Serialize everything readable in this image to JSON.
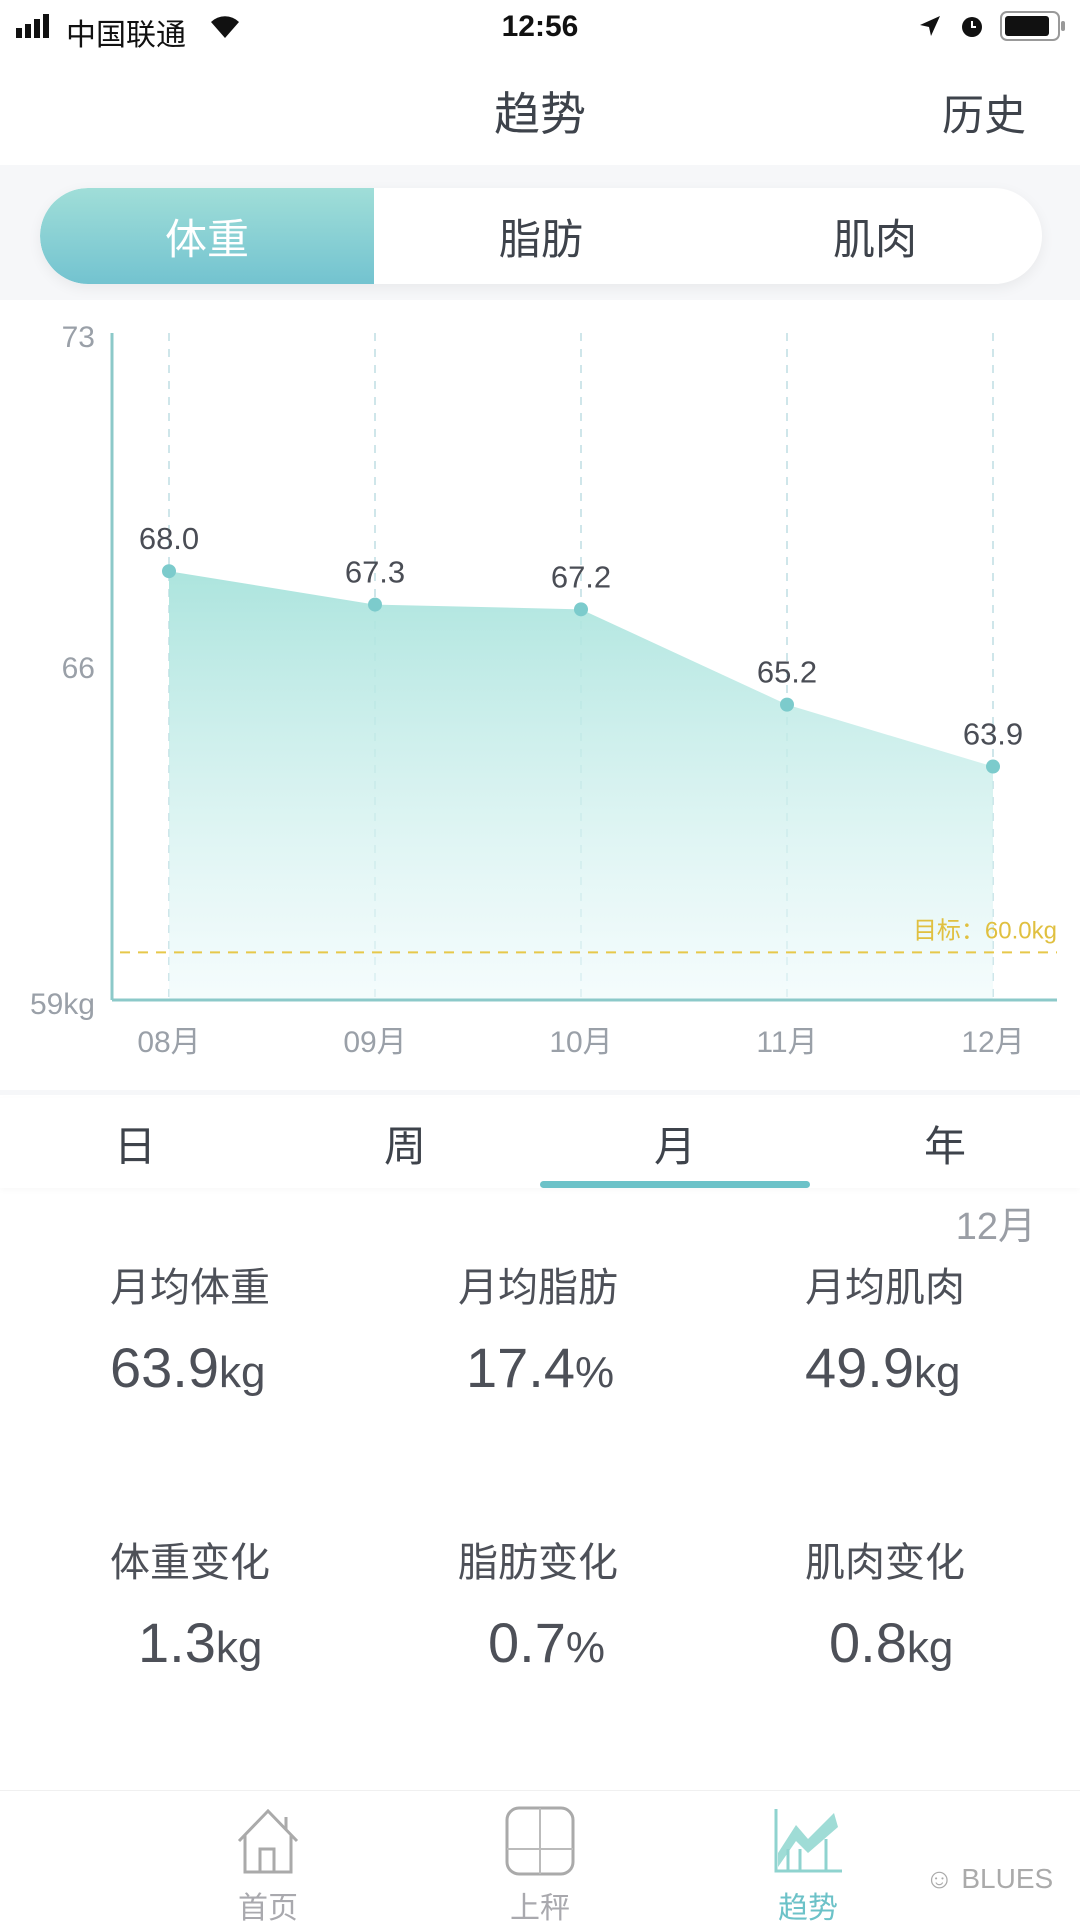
{
  "status_bar": {
    "carrier": "中国联通",
    "time": "12:56"
  },
  "nav": {
    "title": "趋势",
    "history": "历史"
  },
  "metric_tabs": [
    {
      "label": "体重",
      "active": true
    },
    {
      "label": "脂肪",
      "active": false
    },
    {
      "label": "肌肉",
      "active": false
    }
  ],
  "chart_data": {
    "type": "area",
    "categories": [
      "08月",
      "09月",
      "10月",
      "11月",
      "12月"
    ],
    "values": [
      68.0,
      67.3,
      67.2,
      65.2,
      63.9
    ],
    "value_labels": [
      "68.0",
      "67.3",
      "67.2",
      "65.2",
      "63.9"
    ],
    "y_ticks": [
      "73",
      "66",
      "59kg"
    ],
    "ylim": [
      59,
      73
    ],
    "goal": {
      "value": 60.0,
      "label": "目标：60.0kg",
      "color": "#e6c84a"
    },
    "colors": {
      "line": "#7ccbcc",
      "fill_top": "#a8e3dc",
      "axis": "#8cc9c9"
    }
  },
  "period_tabs": [
    {
      "label": "日"
    },
    {
      "label": "周"
    },
    {
      "label": "月",
      "active": true
    },
    {
      "label": "年"
    }
  ],
  "period_label": "12月",
  "stats": [
    {
      "label": "月均体重",
      "value": "63.9",
      "unit": "kg"
    },
    {
      "label": "月均脂肪",
      "value": "17.4",
      "unit": "%"
    },
    {
      "label": "月均肌肉",
      "value": "49.9",
      "unit": "kg"
    },
    {
      "label": "体重变化",
      "value": "1.3",
      "unit": "kg"
    },
    {
      "label": "脂肪变化",
      "value": "0.7",
      "unit": "%"
    },
    {
      "label": "肌肉变化",
      "value": "0.8",
      "unit": "kg"
    }
  ],
  "bottom_nav": [
    {
      "label": "首页",
      "icon": "home-icon"
    },
    {
      "label": "上秤",
      "icon": "scale-icon"
    },
    {
      "label": "趋势",
      "icon": "trend-icon",
      "active": true
    }
  ],
  "watermark": "BLUES",
  "accent": "#6cc2c8"
}
